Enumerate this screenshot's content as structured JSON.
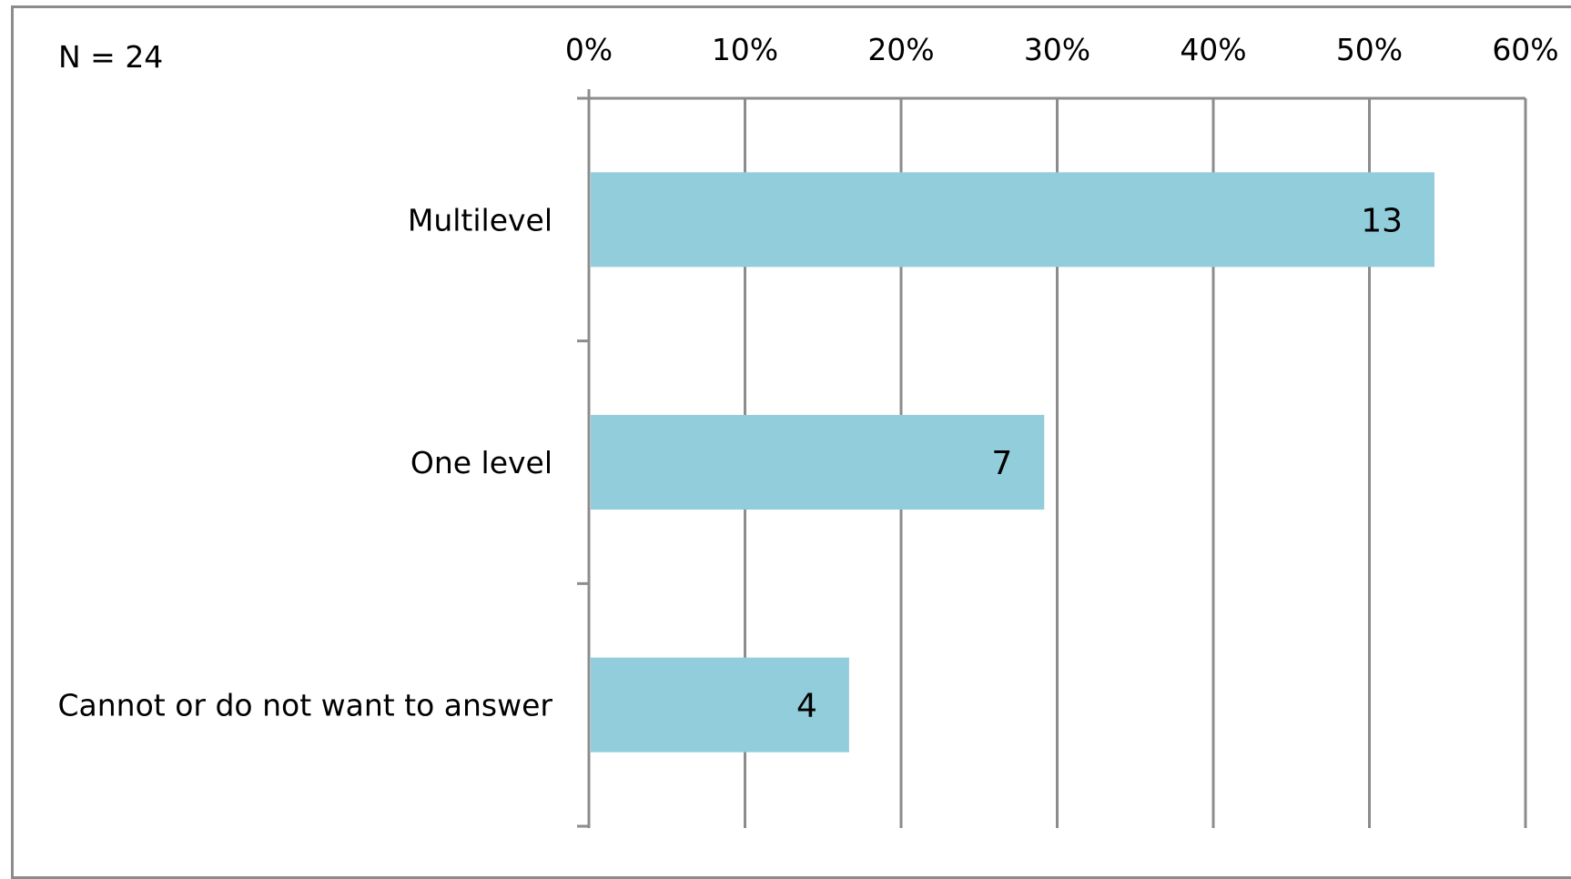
{
  "chart_data": {
    "type": "bar",
    "orientation": "horizontal",
    "annotation": "N = 24",
    "categories": [
      "Multilevel",
      "One level",
      "Cannot or do not want to answer"
    ],
    "values": [
      54.17,
      29.17,
      16.67
    ],
    "data_labels": [
      "13",
      "7",
      "4"
    ],
    "xlim": [
      0,
      60
    ],
    "xticks": [
      0,
      10,
      20,
      30,
      40,
      50,
      60
    ],
    "xtick_labels": [
      "0%",
      "10%",
      "20%",
      "30%",
      "40%",
      "50%",
      "60%"
    ],
    "x_axis_position": "top",
    "grid": true,
    "legend": "none",
    "colors": {
      "bar": "#92CDDC",
      "grid": "#8c8c8c",
      "frame": "#8c8c8c"
    }
  }
}
